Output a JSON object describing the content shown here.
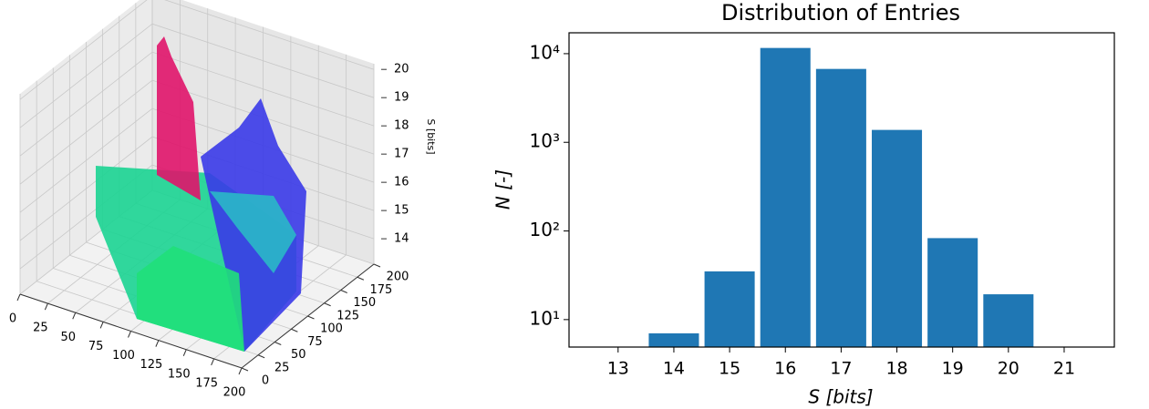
{
  "chart_data": [
    {
      "type": "surface3d",
      "xlim": [
        0,
        200
      ],
      "xticks": [
        0,
        25,
        50,
        75,
        100,
        125,
        150,
        175,
        200
      ],
      "ylim": [
        0,
        200
      ],
      "yticks": [
        0,
        25,
        50,
        75,
        100,
        125,
        150,
        175,
        200
      ],
      "zlim": [
        13.1,
        20.2
      ],
      "zticks": [
        14,
        15,
        16,
        17,
        18,
        19,
        20
      ],
      "zlabel": "S [bits]",
      "grid": true
    },
    {
      "type": "bar",
      "title": "Distribution of Entries",
      "x": [
        14,
        15,
        16,
        17,
        18,
        19,
        20
      ],
      "values": [
        7,
        35,
        11600,
        6730,
        1380,
        83,
        19.3
      ],
      "bar_width": 0.9,
      "color": "#1f77b4",
      "xlim": [
        12.12,
        21.9
      ],
      "xticks": [
        13,
        14,
        15,
        16,
        17,
        18,
        19,
        20,
        21
      ],
      "ylim": [
        4.9,
        17200
      ],
      "log_y": true,
      "yticks": [
        {
          "value": 10,
          "label": "10¹"
        },
        {
          "value": 100,
          "label": "10²"
        },
        {
          "value": 1000,
          "label": "10³"
        },
        {
          "value": 10000,
          "label": "10⁴"
        }
      ],
      "xlabel": "S [bits]",
      "ylabel": "N [-]"
    }
  ]
}
